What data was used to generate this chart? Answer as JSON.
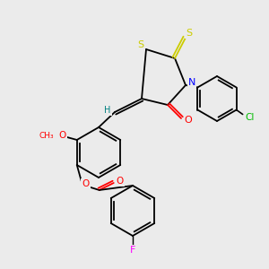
{
  "bg_color": "#ebebeb",
  "bond_color": "#000000",
  "bond_width": 1.3,
  "atom_colors": {
    "S": "#cccc00",
    "N": "#0000ff",
    "O": "#ff0000",
    "Cl": "#00bb00",
    "F": "#ff00ff",
    "H": "#008080",
    "C": "#000000"
  },
  "figsize": [
    3.0,
    3.0
  ],
  "dpi": 100
}
